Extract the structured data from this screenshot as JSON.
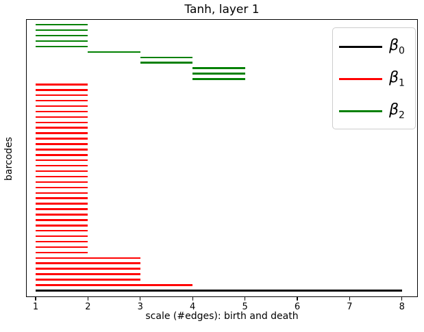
{
  "chart_data": {
    "type": "barcode",
    "title": "Tanh, layer 1",
    "xlabel": "scale (#edges): birth and death",
    "ylabel": "barcodes",
    "x_ticks": [
      1,
      2,
      3,
      4,
      5,
      6,
      7,
      8
    ],
    "x_range": [
      0.817,
      8.303
    ],
    "grid": false,
    "legend_position": "upper right",
    "colors": {
      "beta0": "#000000",
      "beta1": "#ff0000",
      "beta2": "#008000"
    },
    "legend": [
      {
        "name": "beta0",
        "symbol": "β",
        "sub": "0",
        "color": "#000000"
      },
      {
        "name": "beta1",
        "symbol": "β",
        "sub": "1",
        "color": "#ff0000"
      },
      {
        "name": "beta2",
        "symbol": "β",
        "sub": "2",
        "color": "#008000"
      }
    ],
    "bar_format": [
      "series",
      "birth",
      "death"
    ],
    "bars": [
      [
        "beta2",
        1,
        2
      ],
      [
        "beta2",
        1,
        2
      ],
      [
        "beta2",
        1,
        2
      ],
      [
        "beta2",
        1,
        2
      ],
      [
        "beta2",
        1,
        2
      ],
      [
        "beta2",
        2,
        3
      ],
      [
        "beta2",
        3,
        4
      ],
      [
        "beta2",
        3,
        4
      ],
      [
        "beta2",
        4,
        5
      ],
      [
        "beta2",
        4,
        5
      ],
      [
        "beta2",
        4,
        5
      ],
      [
        "beta1",
        1,
        2
      ],
      [
        "beta1",
        1,
        2
      ],
      [
        "beta1",
        1,
        2
      ],
      [
        "beta1",
        1,
        2
      ],
      [
        "beta1",
        1,
        2
      ],
      [
        "beta1",
        1,
        2
      ],
      [
        "beta1",
        1,
        2
      ],
      [
        "beta1",
        1,
        2
      ],
      [
        "beta1",
        1,
        2
      ],
      [
        "beta1",
        1,
        2
      ],
      [
        "beta1",
        1,
        2
      ],
      [
        "beta1",
        1,
        2
      ],
      [
        "beta1",
        1,
        2
      ],
      [
        "beta1",
        1,
        2
      ],
      [
        "beta1",
        1,
        2
      ],
      [
        "beta1",
        1,
        2
      ],
      [
        "beta1",
        1,
        2
      ],
      [
        "beta1",
        1,
        2
      ],
      [
        "beta1",
        1,
        2
      ],
      [
        "beta1",
        1,
        2
      ],
      [
        "beta1",
        1,
        2
      ],
      [
        "beta1",
        1,
        2
      ],
      [
        "beta1",
        1,
        2
      ],
      [
        "beta1",
        1,
        2
      ],
      [
        "beta1",
        1,
        2
      ],
      [
        "beta1",
        1,
        2
      ],
      [
        "beta1",
        1,
        2
      ],
      [
        "beta1",
        1,
        2
      ],
      [
        "beta1",
        1,
        2
      ],
      [
        "beta1",
        1,
        2
      ],
      [
        "beta1",
        1,
        2
      ],
      [
        "beta1",
        1,
        2
      ],
      [
        "beta1",
        1,
        3
      ],
      [
        "beta1",
        1,
        3
      ],
      [
        "beta1",
        1,
        3
      ],
      [
        "beta1",
        1,
        3
      ],
      [
        "beta1",
        1,
        3
      ],
      [
        "beta1",
        1,
        4
      ],
      [
        "beta0",
        1,
        8
      ]
    ]
  }
}
